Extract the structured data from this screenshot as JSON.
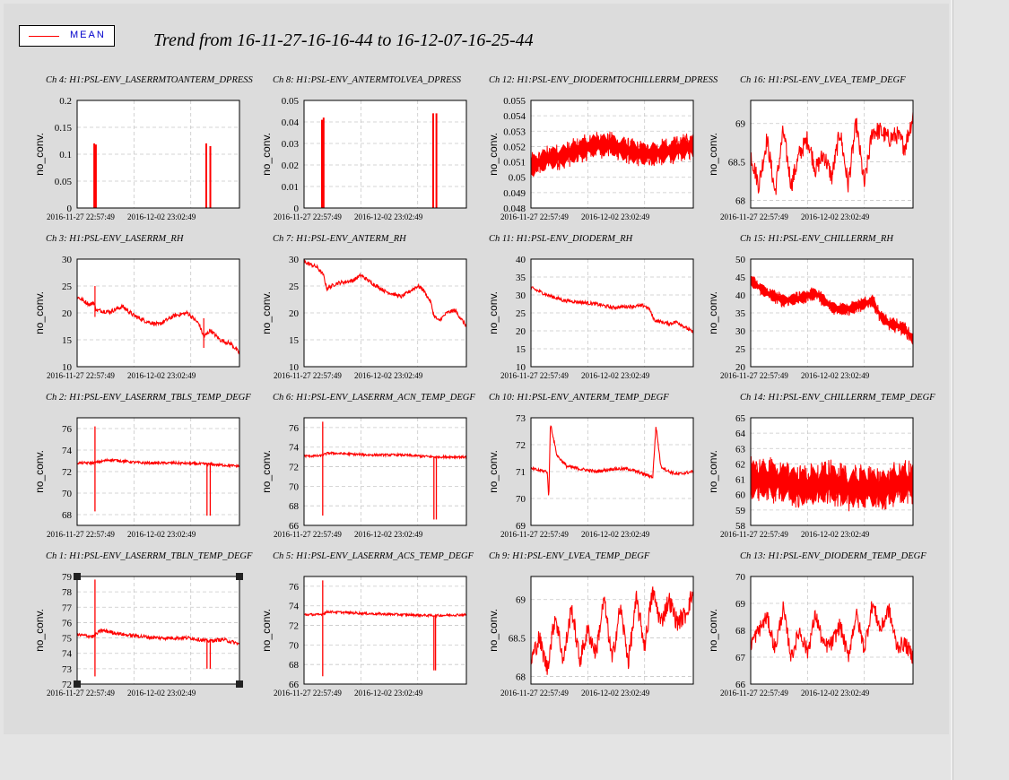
{
  "title": "Trend from 16-11-27-16-16-44 to 16-12-07-16-25-44",
  "legend": {
    "label": "MEAN",
    "color": "#ff0000"
  },
  "chart_data": [
    {
      "type": "line",
      "title": "Ch 4: H1:PSL-ENV_LASERRMTOANTERM_DPRESS",
      "ylabel": "no_conv.",
      "ylim": [
        0,
        0.2
      ],
      "yticks": [
        "0",
        "0.05",
        "0.1",
        "0.15",
        "0.2"
      ],
      "xticks": [
        "2016-11-27 22:57:49",
        "2016-12-02 23:02:49"
      ],
      "kind": "spikes",
      "series": [
        {
          "name": "MEAN",
          "spikes": [
            {
              "t": 0.1,
              "v": 0.12
            },
            {
              "t": 0.11,
              "v": 0.118
            },
            {
              "t": 0.79,
              "v": 0.12
            },
            {
              "t": 0.815,
              "v": 0.115
            }
          ]
        }
      ]
    },
    {
      "type": "line",
      "title": "Ch 8: H1:PSL-ENV_ANTERMTOLVEA_DPRESS",
      "ylabel": "no_conv.",
      "ylim": [
        0,
        0.05
      ],
      "yticks": [
        "0",
        "0.01",
        "0.02",
        "0.03",
        "0.04",
        "0.05"
      ],
      "xticks": [
        "2016-11-27 22:57:49",
        "2016-12-02 23:02:49"
      ],
      "kind": "spikes",
      "series": [
        {
          "name": "MEAN",
          "spikes": [
            {
              "t": 0.105,
              "v": 0.041
            },
            {
              "t": 0.115,
              "v": 0.042
            },
            {
              "t": 0.79,
              "v": 0.044
            },
            {
              "t": 0.81,
              "v": 0.044
            }
          ]
        }
      ]
    },
    {
      "type": "line",
      "title": "Ch 12: H1:PSL-ENV_DIODERMTOCHILLERRM_DPRESS",
      "ylabel": "no_conv.",
      "ylim": [
        0.048,
        0.055
      ],
      "yticks": [
        "0.048",
        "0.049",
        "0.05",
        "0.051",
        "0.052",
        "0.053",
        "0.054",
        "0.055"
      ],
      "xticks": [
        "2016-11-27 22:57:49",
        "2016-12-02 23:02:49"
      ],
      "kind": "band",
      "series": [
        {
          "name": "MEAN",
          "t": [
            0,
            0.1,
            0.2,
            0.3,
            0.4,
            0.5,
            0.6,
            0.7,
            0.8,
            0.9,
            1
          ],
          "v": [
            0.0507,
            0.0512,
            0.0514,
            0.0518,
            0.0521,
            0.0521,
            0.0517,
            0.0515,
            0.0516,
            0.0518,
            0.0521
          ],
          "band": 0.0009
        }
      ]
    },
    {
      "type": "line",
      "title": "Ch 16: H1:PSL-ENV_LVEA_TEMP_DEGF",
      "ylabel": "no_conv.",
      "ylim": [
        67.9,
        69.3
      ],
      "yticks": [
        "68",
        "68.5",
        "69"
      ],
      "xticks": [
        "2016-11-27 22:57:49",
        "2016-12-02 23:02:49"
      ],
      "kind": "wiggle",
      "series": [
        {
          "name": "MEAN",
          "t": [
            0,
            0.05,
            0.1,
            0.15,
            0.2,
            0.25,
            0.3,
            0.35,
            0.4,
            0.45,
            0.5,
            0.55,
            0.6,
            0.65,
            0.7,
            0.75,
            0.8,
            0.85,
            0.9,
            0.95,
            1
          ],
          "v": [
            68.6,
            68.2,
            68.8,
            68.1,
            68.9,
            68.2,
            68.6,
            68.8,
            68.4,
            68.6,
            68.3,
            68.9,
            68.2,
            69.0,
            68.2,
            68.9,
            68.9,
            68.8,
            68.85,
            68.7,
            69.1
          ],
          "band": 0.25
        }
      ]
    },
    {
      "type": "line",
      "title": "Ch 3: H1:PSL-ENV_LASERRM_RH",
      "ylabel": "no_conv.",
      "ylim": [
        10,
        30
      ],
      "yticks": [
        "10",
        "15",
        "20",
        "25",
        "30"
      ],
      "xticks": [
        "2016-11-27 22:57:49",
        "2016-12-02 23:02:49"
      ],
      "kind": "smooth",
      "series": [
        {
          "name": "MEAN",
          "t": [
            0,
            0.08,
            0.1,
            0.12,
            0.2,
            0.28,
            0.35,
            0.42,
            0.5,
            0.6,
            0.68,
            0.75,
            0.78,
            0.82,
            0.88,
            0.95,
            1
          ],
          "v": [
            23,
            21.5,
            22,
            20.5,
            20.2,
            21.2,
            19.5,
            18.5,
            17.8,
            19.5,
            20.0,
            18.0,
            15.5,
            16.8,
            15.0,
            14.2,
            12.5
          ],
          "band": 0.4,
          "dips": [
            {
              "t": 0.11,
              "v": 25
            },
            {
              "t": 0.78,
              "v": 19
            }
          ]
        }
      ]
    },
    {
      "type": "line",
      "title": "Ch 7: H1:PSL-ENV_ANTERM_RH",
      "ylabel": "no_conv.",
      "ylim": [
        10,
        30
      ],
      "yticks": [
        "10",
        "15",
        "20",
        "25",
        "30"
      ],
      "xticks": [
        "2016-11-27 22:57:49",
        "2016-12-02 23:02:49"
      ],
      "kind": "smooth",
      "series": [
        {
          "name": "MEAN",
          "t": [
            0,
            0.08,
            0.12,
            0.14,
            0.2,
            0.3,
            0.35,
            0.42,
            0.5,
            0.6,
            0.7,
            0.73,
            0.78,
            0.8,
            0.83,
            0.88,
            0.93,
            1
          ],
          "v": [
            29.5,
            28.5,
            27,
            24.5,
            25.5,
            26,
            27,
            25.5,
            24,
            23,
            25,
            24.5,
            22,
            19.5,
            18.5,
            20,
            20.5,
            17.5
          ],
          "band": 0.35,
          "dips": []
        }
      ]
    },
    {
      "type": "line",
      "title": "Ch 11: H1:PSL-ENV_DIODERM_RH",
      "ylabel": "no_conv.",
      "ylim": [
        10,
        40
      ],
      "yticks": [
        "10",
        "15",
        "20",
        "25",
        "30",
        "35",
        "40"
      ],
      "xticks": [
        "2016-11-27 22:57:49",
        "2016-12-02 23:02:49"
      ],
      "kind": "smooth",
      "series": [
        {
          "name": "MEAN",
          "t": [
            0,
            0.1,
            0.2,
            0.3,
            0.4,
            0.5,
            0.6,
            0.7,
            0.73,
            0.76,
            0.8,
            0.85,
            0.9,
            0.95,
            1
          ],
          "v": [
            32,
            30,
            28.5,
            28,
            27.5,
            26.5,
            26.8,
            27,
            26,
            23,
            22.5,
            22,
            22.5,
            21,
            19.5
          ],
          "band": 0.5,
          "dips": []
        }
      ]
    },
    {
      "type": "line",
      "title": "Ch 15: H1:PSL-ENV_CHILLERRM_RH",
      "ylabel": "no_conv.",
      "ylim": [
        20,
        50
      ],
      "yticks": [
        "20",
        "25",
        "30",
        "35",
        "40",
        "45",
        "50"
      ],
      "xticks": [
        "2016-11-27 22:57:49",
        "2016-12-02 23:02:49"
      ],
      "kind": "band",
      "series": [
        {
          "name": "MEAN",
          "t": [
            0,
            0.1,
            0.2,
            0.3,
            0.4,
            0.5,
            0.6,
            0.7,
            0.75,
            0.8,
            0.85,
            0.9,
            0.95,
            1
          ],
          "v": [
            44,
            40.5,
            38.5,
            39,
            40.5,
            36.5,
            36,
            37.5,
            38.5,
            34,
            32,
            31.5,
            30.5,
            27.5
          ],
          "band": 2.0
        }
      ]
    },
    {
      "type": "line",
      "title": "Ch 2: H1:PSL-ENV_LASERRM_TBLS_TEMP_DEGF",
      "ylabel": "no_conv.",
      "ylim": [
        67,
        77
      ],
      "yticks": [
        "68",
        "70",
        "72",
        "74",
        "76"
      ],
      "xticks": [
        "2016-11-27 22:57:49",
        "2016-12-02 23:02:49"
      ],
      "kind": "flat",
      "series": [
        {
          "name": "MEAN",
          "t": [
            0,
            0.1,
            0.2,
            0.4,
            0.6,
            0.8,
            1
          ],
          "v": [
            72.8,
            72.8,
            73.1,
            72.8,
            72.8,
            72.7,
            72.5
          ],
          "band": 0.12,
          "spikes": [
            {
              "t": 0.11,
              "v": 68.3,
              "up": 76.2
            },
            {
              "t": 0.8,
              "v": 67.9,
              "up": 72.8
            },
            {
              "t": 0.82,
              "v": 67.9,
              "up": 72.8
            }
          ]
        }
      ]
    },
    {
      "type": "line",
      "title": "Ch 6: H1:PSL-ENV_LASERRM_ACN_TEMP_DEGF",
      "ylabel": "no_conv.",
      "ylim": [
        66,
        77
      ],
      "yticks": [
        "66",
        "68",
        "70",
        "72",
        "74",
        "76"
      ],
      "xticks": [
        "2016-11-27 22:57:49",
        "2016-12-02 23:02:49"
      ],
      "kind": "flat",
      "series": [
        {
          "name": "MEAN",
          "t": [
            0,
            0.1,
            0.15,
            0.4,
            0.6,
            0.8,
            1
          ],
          "v": [
            73.1,
            73.1,
            73.4,
            73.2,
            73.2,
            73.0,
            73.0
          ],
          "band": 0.12,
          "spikes": [
            {
              "t": 0.115,
              "v": 67.0,
              "up": 76.6
            },
            {
              "t": 0.8,
              "v": 66.6,
              "up": 73.0
            },
            {
              "t": 0.815,
              "v": 66.6,
              "up": 73.0
            }
          ]
        }
      ]
    },
    {
      "type": "line",
      "title": "Ch 10: H1:PSL-ENV_ANTERM_TEMP_DEGF",
      "ylabel": "no_conv.",
      "ylim": [
        69,
        73
      ],
      "yticks": [
        "69",
        "70",
        "71",
        "72",
        "73"
      ],
      "xticks": [
        "2016-11-27 22:57:49",
        "2016-12-02 23:02:49"
      ],
      "kind": "smooth",
      "series": [
        {
          "name": "MEAN",
          "t": [
            0,
            0.1,
            0.11,
            0.12,
            0.16,
            0.22,
            0.3,
            0.4,
            0.5,
            0.6,
            0.7,
            0.75,
            0.77,
            0.8,
            0.85,
            0.9,
            1
          ],
          "v": [
            71.1,
            71.0,
            70.0,
            72.8,
            71.6,
            71.2,
            71.1,
            71.0,
            71.1,
            71.1,
            70.9,
            70.8,
            72.7,
            71.2,
            71.0,
            70.9,
            71.0
          ],
          "band": 0.06,
          "dips": []
        }
      ]
    },
    {
      "type": "line",
      "title": "Ch 14: H1:PSL-ENV_CHILLERRM_TEMP_DEGF",
      "ylabel": "no_conv.",
      "ylim": [
        58,
        65
      ],
      "yticks": [
        "58",
        "59",
        "60",
        "61",
        "62",
        "63",
        "64",
        "65"
      ],
      "xticks": [
        "2016-11-27 22:57:49",
        "2016-12-02 23:02:49"
      ],
      "kind": "band",
      "series": [
        {
          "name": "MEAN",
          "t": [
            0,
            0.1,
            0.2,
            0.3,
            0.4,
            0.5,
            0.6,
            0.7,
            0.8,
            0.9,
            1
          ],
          "v": [
            61,
            61,
            60.8,
            60.5,
            60.6,
            60.8,
            60.4,
            60.5,
            60.3,
            60.7,
            60.8
          ],
          "band": 1.5
        }
      ]
    },
    {
      "type": "line",
      "title": "Ch 1: H1:PSL-ENV_LASERRM_TBLN_TEMP_DEGF",
      "ylabel": "no_conv.",
      "ylim": [
        72,
        79
      ],
      "yticks": [
        "72",
        "73",
        "74",
        "75",
        "76",
        "77",
        "78",
        "79"
      ],
      "xticks": [
        "2016-11-27 22:57:49",
        "2016-12-02 23:02:49"
      ],
      "kind": "flat",
      "series": [
        {
          "name": "MEAN",
          "t": [
            0,
            0.1,
            0.15,
            0.3,
            0.5,
            0.7,
            0.8,
            0.9,
            1
          ],
          "v": [
            75.2,
            75.1,
            75.5,
            75.2,
            75.0,
            75.0,
            74.8,
            74.9,
            74.6
          ],
          "band": 0.12,
          "spikes": [
            {
              "t": 0.11,
              "v": 72.5,
              "up": 78.8
            },
            {
              "t": 0.8,
              "v": 73.0,
              "up": 74.9
            },
            {
              "t": 0.82,
              "v": 73.0,
              "up": 74.9
            }
          ]
        }
      ]
    },
    {
      "type": "line",
      "title": "Ch 5: H1:PSL-ENV_LASERRM_ACS_TEMP_DEGF",
      "ylabel": "no_conv.",
      "ylim": [
        66,
        77
      ],
      "yticks": [
        "66",
        "68",
        "70",
        "72",
        "74",
        "76"
      ],
      "xticks": [
        "2016-11-27 22:57:49",
        "2016-12-02 23:02:49"
      ],
      "kind": "flat",
      "series": [
        {
          "name": "MEAN",
          "t": [
            0,
            0.1,
            0.15,
            0.4,
            0.6,
            0.8,
            1
          ],
          "v": [
            73.1,
            73.1,
            73.4,
            73.2,
            73.1,
            73.0,
            73.1
          ],
          "band": 0.12,
          "spikes": [
            {
              "t": 0.115,
              "v": 66.8,
              "up": 76.6
            },
            {
              "t": 0.8,
              "v": 67.4,
              "up": 73.0
            },
            {
              "t": 0.81,
              "v": 67.4,
              "up": 73.0
            }
          ]
        }
      ]
    },
    {
      "type": "line",
      "title": "Ch 9: H1:PSL-ENV_LVEA_TEMP_DEGF",
      "ylabel": "no_conv.",
      "ylim": [
        67.9,
        69.3
      ],
      "yticks": [
        "68",
        "68.5",
        "69"
      ],
      "xticks": [
        "2016-11-27 22:57:49",
        "2016-12-02 23:02:49"
      ],
      "kind": "wiggle",
      "series": [
        {
          "name": "MEAN",
          "t": [
            0,
            0.05,
            0.1,
            0.15,
            0.2,
            0.25,
            0.3,
            0.35,
            0.4,
            0.45,
            0.5,
            0.55,
            0.6,
            0.65,
            0.7,
            0.75,
            0.8,
            0.85,
            0.9,
            0.95,
            1
          ],
          "v": [
            68.2,
            68.5,
            68.1,
            68.8,
            68.2,
            68.9,
            68.2,
            68.6,
            68.3,
            69.0,
            68.2,
            68.9,
            68.2,
            69.0,
            68.4,
            69.1,
            68.7,
            69.0,
            68.7,
            68.8,
            69.1
          ],
          "band": 0.25
        }
      ]
    },
    {
      "type": "line",
      "title": "Ch 13: H1:PSL-ENV_DIODERM_TEMP_DEGF",
      "ylabel": "no_conv.",
      "ylim": [
        66,
        70
      ],
      "yticks": [
        "66",
        "67",
        "68",
        "69",
        "70"
      ],
      "xticks": [
        "2016-11-27 22:57:49",
        "2016-12-02 23:02:49"
      ],
      "kind": "wiggle",
      "series": [
        {
          "name": "MEAN",
          "t": [
            0,
            0.05,
            0.1,
            0.15,
            0.2,
            0.25,
            0.3,
            0.35,
            0.4,
            0.45,
            0.5,
            0.55,
            0.6,
            0.65,
            0.7,
            0.75,
            0.8,
            0.85,
            0.9,
            0.95,
            1
          ],
          "v": [
            67.5,
            68.0,
            68.5,
            67.3,
            68.8,
            67.0,
            68.0,
            67.2,
            68.6,
            67.4,
            67.5,
            68.2,
            67.0,
            68.6,
            67.3,
            69.0,
            68.0,
            68.8,
            67.4,
            67.5,
            67.0
          ],
          "band": 0.6
        }
      ]
    }
  ]
}
